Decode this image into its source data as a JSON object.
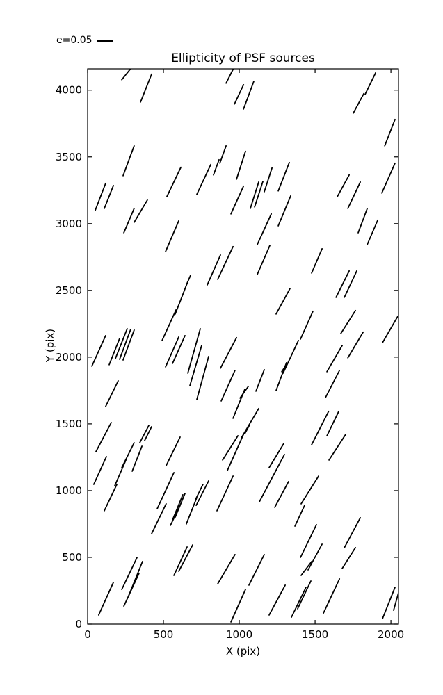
{
  "page": {
    "background": "#ffffff",
    "accent": "#000000"
  },
  "chart_data": {
    "type": "line_segments",
    "title": "Ellipticity of PSF sources",
    "xlabel": "X (pix)",
    "ylabel": "Y (pix)",
    "xlim": [
      0,
      2050
    ],
    "ylim": [
      0,
      4160
    ],
    "xticks": [
      0,
      500,
      1000,
      1500,
      2000
    ],
    "yticks": [
      0,
      500,
      1000,
      1500,
      2000,
      2500,
      3000,
      3500,
      4000
    ],
    "grid": false,
    "legend": {
      "label": "e=0.05",
      "position": "upper-left-outside"
    },
    "stroke_color": "#000000",
    "stroke_width": 1.8,
    "segments": [
      [
        225,
        4078,
        280,
        4156
      ],
      [
        349,
        3911,
        422,
        4120
      ],
      [
        234,
        3359,
        307,
        3583
      ],
      [
        913,
        4052,
        959,
        4156
      ],
      [
        968,
        3896,
        1028,
        4041
      ],
      [
        1028,
        3859,
        1096,
        4067
      ],
      [
        523,
        3203,
        615,
        3422
      ],
      [
        720,
        3219,
        812,
        3443
      ],
      [
        830,
        3365,
        867,
        3479
      ],
      [
        872,
        3453,
        913,
        3583
      ],
      [
        982,
        3333,
        1041,
        3542
      ],
      [
        1165,
        3239,
        1216,
        3417
      ],
      [
        1257,
        3245,
        1330,
        3458
      ],
      [
        1830,
        3969,
        1899,
        4130
      ],
      [
        1752,
        3828,
        1821,
        3974
      ],
      [
        1959,
        3583,
        2027,
        3781
      ],
      [
        1647,
        3203,
        1725,
        3365
      ],
      [
        1940,
        3229,
        2027,
        3453
      ],
      [
        50,
        3099,
        119,
        3302
      ],
      [
        110,
        3114,
        170,
        3286
      ],
      [
        239,
        2932,
        307,
        3114
      ],
      [
        307,
        3010,
        394,
        3177
      ],
      [
        514,
        2791,
        601,
        3021
      ],
      [
        491,
        2125,
        583,
        2354
      ],
      [
        578,
        2323,
        661,
        2567
      ],
      [
        945,
        3073,
        1028,
        3281
      ],
      [
        1073,
        3114,
        1128,
        3312
      ],
      [
        1101,
        3125,
        1156,
        3317
      ],
      [
        1257,
        2984,
        1339,
        3208
      ],
      [
        1119,
        2844,
        1211,
        3073
      ],
      [
        1119,
        2620,
        1202,
        2838
      ],
      [
        789,
        2541,
        876,
        2765
      ],
      [
        858,
        2583,
        959,
        2828
      ],
      [
        656,
        2552,
        679,
        2614
      ],
      [
        1243,
        2323,
        1335,
        2515
      ],
      [
        1716,
        3114,
        1798,
        3312
      ],
      [
        1784,
        2932,
        1844,
        3114
      ],
      [
        1844,
        2844,
        1913,
        3026
      ],
      [
        1477,
        2630,
        1546,
        2812
      ],
      [
        1638,
        2448,
        1725,
        2646
      ],
      [
        1693,
        2448,
        1775,
        2646
      ],
      [
        28,
        1932,
        119,
        2161
      ],
      [
        142,
        1943,
        211,
        2140
      ],
      [
        183,
        1989,
        261,
        2213
      ],
      [
        211,
        1984,
        284,
        2208
      ],
      [
        234,
        1979,
        307,
        2203
      ],
      [
        514,
        1927,
        601,
        2151
      ],
      [
        560,
        1953,
        642,
        2161
      ],
      [
        119,
        1630,
        202,
        1823
      ],
      [
        55,
        1292,
        156,
        1510
      ],
      [
        661,
        1880,
        743,
        2213
      ],
      [
        674,
        1786,
        752,
        2088
      ],
      [
        720,
        1682,
        798,
        2005
      ],
      [
        876,
        1917,
        982,
        2146
      ],
      [
        881,
        1672,
        972,
        1901
      ],
      [
        959,
        1542,
        1037,
        1760
      ],
      [
        1005,
        1693,
        1060,
        1781
      ],
      [
        1110,
        1745,
        1165,
        1906
      ],
      [
        1243,
        1750,
        1311,
        1958
      ],
      [
        1289,
        1880,
        1390,
        2125
      ],
      [
        1280,
        1891,
        1316,
        1953
      ],
      [
        1014,
        1396,
        1128,
        1615
      ],
      [
        1037,
        1427,
        1069,
        1495
      ],
      [
        1404,
        2135,
        1486,
        2344
      ],
      [
        1670,
        2177,
        1766,
        2349
      ],
      [
        1716,
        1995,
        1817,
        2188
      ],
      [
        1945,
        2109,
        2046,
        2307
      ],
      [
        1578,
        1891,
        1679,
        2088
      ],
      [
        1569,
        1698,
        1661,
        1901
      ],
      [
        1477,
        1344,
        1589,
        1594
      ],
      [
        1578,
        1411,
        1656,
        1594
      ],
      [
        41,
        1047,
        124,
        1255
      ],
      [
        110,
        849,
        193,
        1047
      ],
      [
        179,
        1036,
        257,
        1240
      ],
      [
        225,
        1172,
        307,
        1359
      ],
      [
        294,
        1146,
        358,
        1333
      ],
      [
        344,
        1359,
        404,
        1489
      ],
      [
        376,
        1375,
        422,
        1479
      ],
      [
        518,
        1187,
        610,
        1401
      ],
      [
        459,
        865,
        569,
        1135
      ],
      [
        422,
        677,
        518,
        901
      ],
      [
        546,
        740,
        610,
        890
      ],
      [
        560,
        781,
        628,
        969
      ],
      [
        578,
        802,
        642,
        979
      ],
      [
        651,
        750,
        720,
        948
      ],
      [
        711,
        932,
        761,
        1047
      ],
      [
        716,
        890,
        798,
        1073
      ],
      [
        890,
        1229,
        991,
        1411
      ],
      [
        922,
        1151,
        1028,
        1422
      ],
      [
        853,
        849,
        959,
        1109
      ],
      [
        1133,
        917,
        1298,
        1271
      ],
      [
        1197,
        1172,
        1294,
        1354
      ],
      [
        1234,
        875,
        1325,
        1068
      ],
      [
        1592,
        1229,
        1702,
        1422
      ],
      [
        1408,
        901,
        1523,
        1109
      ],
      [
        1367,
        734,
        1431,
        890
      ],
      [
        1404,
        500,
        1509,
        745
      ],
      [
        1454,
        406,
        1546,
        599
      ],
      [
        1408,
        365,
        1477,
        469
      ],
      [
        1693,
        573,
        1798,
        797
      ],
      [
        1679,
        417,
        1766,
        573
      ],
      [
        73,
        68,
        170,
        313
      ],
      [
        225,
        260,
        326,
        500
      ],
      [
        239,
        135,
        339,
        380
      ],
      [
        271,
        214,
        362,
        469
      ],
      [
        569,
        365,
        656,
        578
      ],
      [
        601,
        396,
        693,
        594
      ],
      [
        858,
        302,
        972,
        521
      ],
      [
        945,
        16,
        1041,
        260
      ],
      [
        1064,
        292,
        1165,
        521
      ],
      [
        1197,
        68,
        1303,
        292
      ],
      [
        1344,
        52,
        1440,
        276
      ],
      [
        1385,
        115,
        1472,
        323
      ],
      [
        1555,
        83,
        1661,
        339
      ],
      [
        1945,
        42,
        2027,
        276
      ],
      [
        2018,
        104,
        2060,
        276
      ]
    ]
  }
}
